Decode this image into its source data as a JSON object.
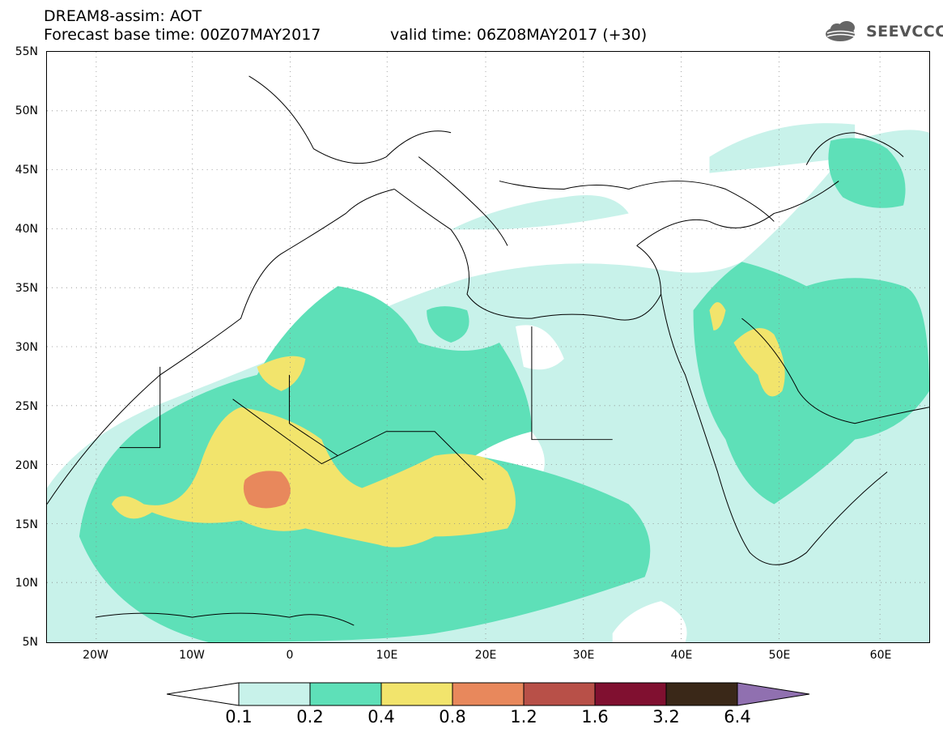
{
  "header": {
    "title": "DREAM8-assim: AOT",
    "base_time": "Forecast base time: 00Z07MAY2017",
    "valid_time": "valid time: 06Z08MAY2017 (+30)",
    "logo_text": "SEEVCCC",
    "logo_icon": "cloud-logo-icon"
  },
  "map": {
    "lat_labels": [
      "55N",
      "50N",
      "45N",
      "40N",
      "35N",
      "30N",
      "25N",
      "20N",
      "15N",
      "10N",
      "5N"
    ],
    "lon_labels": [
      "20W",
      "10W",
      "0",
      "10E",
      "20E",
      "30E",
      "40E",
      "50E",
      "60E"
    ],
    "lon_range": [
      -25,
      65
    ],
    "lat_range": [
      5,
      55
    ],
    "grid": "dotted"
  },
  "legend": {
    "thresholds": [
      "0.1",
      "0.2",
      "0.4",
      "0.8",
      "1.2",
      "1.6",
      "3.2",
      "6.4"
    ],
    "colors": [
      "#c8f2ea",
      "#5ee0b8",
      "#f2e46c",
      "#e8885c",
      "#b85048",
      "#801030",
      "#3a2818",
      "#9070b0"
    ],
    "under_color": "#ffffff"
  }
}
